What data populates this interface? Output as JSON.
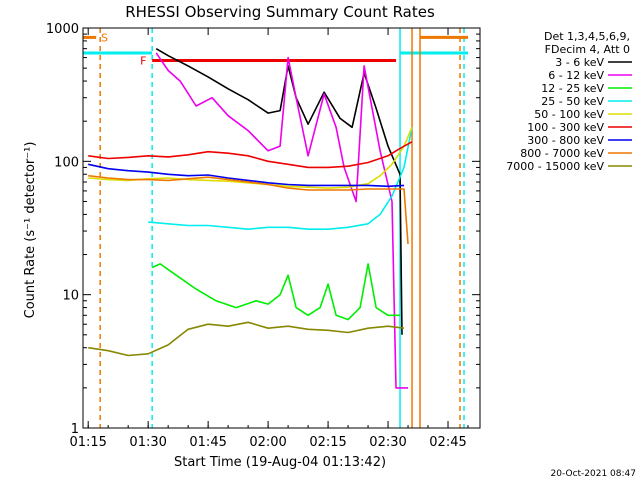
{
  "colors": {
    "3-6": "#000000",
    "6-12": "#ee00ee",
    "12-25": "#00ee00",
    "25-50": "#00eeee",
    "50-100": "#dddd00",
    "100-300": "#ee0000",
    "300-800": "#0000ee",
    "800-7000": "#ee7700",
    "7000-15000": "#888800",
    "flag_S": "#ee7700",
    "flag_F": "#ee0000",
    "flag_cyan": "#00eeee"
  },
  "chart_data": {
    "type": "line",
    "title": "RHESSI Observing Summary Count Rates",
    "xlabel": "Start Time (19-Aug-04 01:13:42)",
    "ylabel": "Count Rate (s⁻¹ detector⁻¹)",
    "y_scale": "log",
    "ylim": [
      1,
      1000
    ],
    "xlim": [
      "01:13:42",
      "02:53:00"
    ],
    "x_ticks": [
      "01:15",
      "01:30",
      "01:45",
      "02:00",
      "02:15",
      "02:30",
      "02:45"
    ],
    "y_ticks": [
      "1",
      "10",
      "100",
      "1000"
    ],
    "legend_header": [
      "Det 1,3,4,5,6,9,",
      "FDecim 4, Att 0"
    ],
    "legend_position": "right",
    "series": [
      {
        "name": "3 - 6 keV",
        "color_key": "3-6",
        "points": [
          [
            "01:32",
            700
          ],
          [
            "01:35",
            620
          ],
          [
            "01:40",
            520
          ],
          [
            "01:45",
            430
          ],
          [
            "01:50",
            350
          ],
          [
            "01:55",
            290
          ],
          [
            "02:00",
            230
          ],
          [
            "02:03",
            240
          ],
          [
            "02:05",
            520
          ],
          [
            "02:07",
            300
          ],
          [
            "02:10",
            190
          ],
          [
            "02:14",
            330
          ],
          [
            "02:18",
            210
          ],
          [
            "02:21",
            180
          ],
          [
            "02:24",
            460
          ],
          [
            "02:27",
            250
          ],
          [
            "02:30",
            130
          ],
          [
            "02:33",
            80
          ],
          [
            "02:33.5",
            5
          ]
        ]
      },
      {
        "name": "6 - 12 keV",
        "color_key": "6-12",
        "points": [
          [
            "01:32",
            650
          ],
          [
            "01:35",
            480
          ],
          [
            "01:38",
            400
          ],
          [
            "01:42",
            260
          ],
          [
            "01:46",
            300
          ],
          [
            "01:50",
            220
          ],
          [
            "01:55",
            170
          ],
          [
            "02:00",
            120
          ],
          [
            "02:03",
            130
          ],
          [
            "02:05",
            600
          ],
          [
            "02:07",
            300
          ],
          [
            "02:10",
            110
          ],
          [
            "02:14",
            320
          ],
          [
            "02:17",
            180
          ],
          [
            "02:19",
            90
          ],
          [
            "02:22",
            50
          ],
          [
            "02:24",
            520
          ],
          [
            "02:26",
            250
          ],
          [
            "02:28",
            120
          ],
          [
            "02:31",
            50
          ],
          [
            "02:32",
            2
          ],
          [
            "02:35",
            2
          ]
        ]
      },
      {
        "name": "12 - 25 keV",
        "color_key": "12-25",
        "points": [
          [
            "01:31",
            16
          ],
          [
            "01:33",
            17
          ],
          [
            "01:37",
            14
          ],
          [
            "01:42",
            11
          ],
          [
            "01:47",
            9
          ],
          [
            "01:52",
            8
          ],
          [
            "01:57",
            9
          ],
          [
            "02:00",
            8.5
          ],
          [
            "02:03",
            10
          ],
          [
            "02:05",
            14
          ],
          [
            "02:07",
            8
          ],
          [
            "02:10",
            7
          ],
          [
            "02:13",
            8
          ],
          [
            "02:15",
            12
          ],
          [
            "02:17",
            7
          ],
          [
            "02:20",
            6.5
          ],
          [
            "02:23",
            8
          ],
          [
            "02:25",
            17
          ],
          [
            "02:27",
            8
          ],
          [
            "02:30",
            7
          ],
          [
            "02:33",
            7
          ]
        ]
      },
      {
        "name": "25 - 50 keV",
        "color_key": "25-50",
        "points": [
          [
            "01:30",
            35
          ],
          [
            "01:35",
            34
          ],
          [
            "01:40",
            33
          ],
          [
            "01:45",
            33
          ],
          [
            "01:50",
            32
          ],
          [
            "01:55",
            31
          ],
          [
            "02:00",
            32
          ],
          [
            "02:05",
            32
          ],
          [
            "02:10",
            31
          ],
          [
            "02:15",
            31
          ],
          [
            "02:20",
            32
          ],
          [
            "02:25",
            34
          ],
          [
            "02:28",
            40
          ],
          [
            "02:31",
            55
          ],
          [
            "02:34",
            90
          ],
          [
            "02:36",
            180
          ]
        ]
      },
      {
        "name": "50 - 100 keV",
        "color_key": "50-100",
        "points": [
          [
            "01:15",
            75
          ],
          [
            "01:20",
            73
          ],
          [
            "01:25",
            72
          ],
          [
            "01:30",
            74
          ],
          [
            "01:35",
            75
          ],
          [
            "01:40",
            73
          ],
          [
            "01:45",
            72
          ],
          [
            "01:50",
            71
          ],
          [
            "01:55",
            69
          ],
          [
            "02:00",
            67
          ],
          [
            "02:05",
            65
          ],
          [
            "02:10",
            64
          ],
          [
            "02:15",
            63
          ],
          [
            "02:20",
            64
          ],
          [
            "02:25",
            68
          ],
          [
            "02:28",
            78
          ],
          [
            "02:31",
            95
          ],
          [
            "02:34",
            130
          ],
          [
            "02:36",
            180
          ]
        ]
      },
      {
        "name": "100 - 300 keV",
        "color_key": "100-300",
        "points": [
          [
            "01:15",
            110
          ],
          [
            "01:20",
            105
          ],
          [
            "01:25",
            107
          ],
          [
            "01:30",
            110
          ],
          [
            "01:35",
            108
          ],
          [
            "01:40",
            112
          ],
          [
            "01:45",
            118
          ],
          [
            "01:50",
            115
          ],
          [
            "01:55",
            110
          ],
          [
            "02:00",
            100
          ],
          [
            "02:05",
            95
          ],
          [
            "02:10",
            90
          ],
          [
            "02:15",
            90
          ],
          [
            "02:20",
            92
          ],
          [
            "02:25",
            98
          ],
          [
            "02:30",
            110
          ],
          [
            "02:33",
            125
          ],
          [
            "02:36",
            140
          ]
        ]
      },
      {
        "name": "300 - 800 keV",
        "color_key": "300-800",
        "points": [
          [
            "01:15",
            95
          ],
          [
            "01:20",
            88
          ],
          [
            "01:25",
            85
          ],
          [
            "01:30",
            83
          ],
          [
            "01:35",
            80
          ],
          [
            "01:40",
            78
          ],
          [
            "01:45",
            79
          ],
          [
            "01:50",
            75
          ],
          [
            "01:55",
            72
          ],
          [
            "02:00",
            69
          ],
          [
            "02:05",
            67
          ],
          [
            "02:10",
            66
          ],
          [
            "02:15",
            66
          ],
          [
            "02:20",
            66
          ],
          [
            "02:25",
            66
          ],
          [
            "02:30",
            65
          ],
          [
            "02:34",
            66
          ]
        ]
      },
      {
        "name": "800 - 7000 keV",
        "color_key": "800-7000",
        "points": [
          [
            "01:15",
            78
          ],
          [
            "01:20",
            75
          ],
          [
            "01:25",
            73
          ],
          [
            "01:30",
            73
          ],
          [
            "01:35",
            72
          ],
          [
            "01:40",
            74
          ],
          [
            "01:45",
            76
          ],
          [
            "01:50",
            73
          ],
          [
            "01:55",
            70
          ],
          [
            "02:00",
            67
          ],
          [
            "02:05",
            63
          ],
          [
            "02:10",
            61
          ],
          [
            "02:15",
            61
          ],
          [
            "02:20",
            61
          ],
          [
            "02:25",
            62
          ],
          [
            "02:30",
            62
          ],
          [
            "02:34",
            62
          ],
          [
            "02:35",
            24
          ]
        ]
      },
      {
        "name": "7000 - 15000 keV",
        "color_key": "7000-15000",
        "points": [
          [
            "01:15",
            4
          ],
          [
            "01:20",
            3.8
          ],
          [
            "01:25",
            3.5
          ],
          [
            "01:30",
            3.6
          ],
          [
            "01:35",
            4.2
          ],
          [
            "01:40",
            5.5
          ],
          [
            "01:45",
            6
          ],
          [
            "01:50",
            5.8
          ],
          [
            "01:55",
            6.2
          ],
          [
            "02:00",
            5.6
          ],
          [
            "02:05",
            5.8
          ],
          [
            "02:10",
            5.5
          ],
          [
            "02:15",
            5.4
          ],
          [
            "02:20",
            5.2
          ],
          [
            "02:25",
            5.6
          ],
          [
            "02:30",
            5.8
          ],
          [
            "02:34",
            5.6
          ]
        ]
      }
    ],
    "flags": [
      {
        "label": "S",
        "color_key": "flag_S",
        "start": "01:13:42",
        "end": "01:17",
        "level": 850
      },
      {
        "label": "F",
        "color_key": "flag_F",
        "start": "01:31",
        "end": "02:32",
        "level": 570
      },
      {
        "label": "",
        "color_key": "flag_S",
        "start": "02:38",
        "end": "02:50",
        "level": 850
      }
    ],
    "vertical_lines": [
      {
        "time": "01:18",
        "color_key": "flag_S",
        "style": "dashed"
      },
      {
        "time": "01:31",
        "color_key": "flag_cyan",
        "style": "dashed"
      },
      {
        "time": "02:33",
        "color_key": "flag_cyan",
        "style": "solid"
      },
      {
        "time": "02:36",
        "color_key": "flag_S",
        "style": "solid"
      },
      {
        "time": "02:38",
        "color_key": "flag_S",
        "style": "solid"
      },
      {
        "time": "02:48",
        "color_key": "flag_S",
        "style": "dashed"
      },
      {
        "time": "02:49",
        "color_key": "flag_cyan",
        "style": "dashed"
      }
    ],
    "cyan_bands": [
      {
        "start": "01:13:42",
        "end": "01:31",
        "level": 650
      },
      {
        "start": "02:33",
        "end": "02:50",
        "level": 650
      }
    ]
  },
  "footer": {
    "timestamp": "20-Oct-2021 08:47"
  }
}
